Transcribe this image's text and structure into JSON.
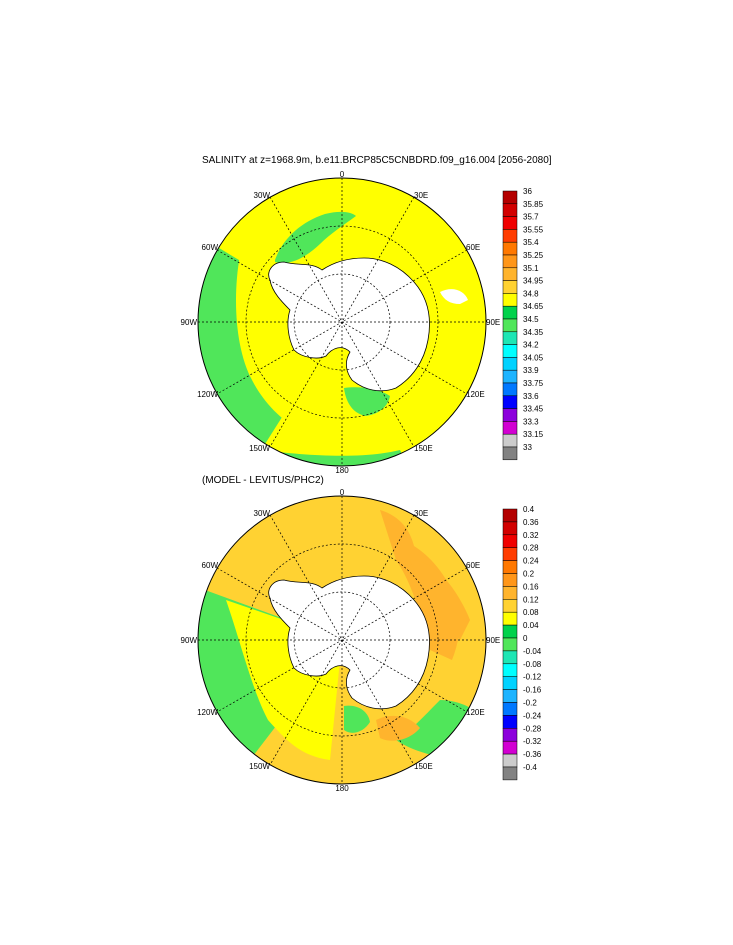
{
  "panels": [
    {
      "title": "SALINITY at z=1968.9m, b.e11.BRCP85C5CNBDRD.f09_g16.004 [2056-2080]",
      "lon_labels": {
        "n0": "0",
        "n30e": "30E",
        "n60e": "60E",
        "n90e": "90E",
        "n120e": "120E",
        "n150e": "150E",
        "n180": "180",
        "n150w": "150W",
        "n120w": "120W",
        "n90w": "90W",
        "n60w": "60W",
        "n30w": "30W"
      },
      "colorbar": {
        "labels": [
          "36",
          "35.85",
          "35.7",
          "35.55",
          "35.4",
          "35.25",
          "35.1",
          "34.95",
          "34.8",
          "34.65",
          "34.5",
          "34.35",
          "34.2",
          "34.05",
          "33.9",
          "33.75",
          "33.6",
          "33.45",
          "33.3",
          "33.15",
          "33"
        ],
        "colors": [
          "#b40000",
          "#d20000",
          "#f00000",
          "#ff3c00",
          "#ff7800",
          "#ff9619",
          "#ffb42d",
          "#ffd232",
          "#ffff00",
          "#00d24b",
          "#50e65a",
          "#1ee6b4",
          "#00ffff",
          "#00d2ff",
          "#1eb4ff",
          "#0078ff",
          "#0000ff",
          "#8c00dc",
          "#d200d2",
          "#cccccc",
          "#828282"
        ]
      }
    },
    {
      "title": "(MODEL - LEVITUS/PHC2)",
      "lon_labels": {
        "n0": "0",
        "n30e": "30E",
        "n60e": "60E",
        "n90e": "90E",
        "n120e": "120E",
        "n150e": "150E",
        "n180": "180",
        "n150w": "150W",
        "n120w": "120W",
        "n90w": "90W",
        "n60w": "60W",
        "n30w": "30W"
      },
      "colorbar": {
        "labels": [
          "0.4",
          "0.36",
          "0.32",
          "0.28",
          "0.24",
          "0.2",
          "0.16",
          "0.12",
          "0.08",
          "0.04",
          "0",
          "-0.04",
          "-0.08",
          "-0.12",
          "-0.16",
          "-0.2",
          "-0.24",
          "-0.28",
          "-0.32",
          "-0.36",
          "-0.4"
        ],
        "colors": [
          "#b40000",
          "#d20000",
          "#f00000",
          "#ff3c00",
          "#ff7800",
          "#ff9619",
          "#ffb42d",
          "#ffd232",
          "#ffff00",
          "#00d24b",
          "#50e65a",
          "#1ee6b4",
          "#00ffff",
          "#00d2ff",
          "#1eb4ff",
          "#0078ff",
          "#0000ff",
          "#8c00dc",
          "#d200d2",
          "#cccccc",
          "#828282"
        ]
      }
    }
  ],
  "colors": {
    "land": "#ffffff",
    "ocean_main_top": "#ffff00",
    "ocean_shelf_top": "#50e65a",
    "ocean_main_bottom": "#ffd232",
    "ocean_mid_bottom": "#ffff00",
    "ocean_shelf_bottom": "#50e65a",
    "ocean_positive_bottom": "#ffb42d"
  }
}
